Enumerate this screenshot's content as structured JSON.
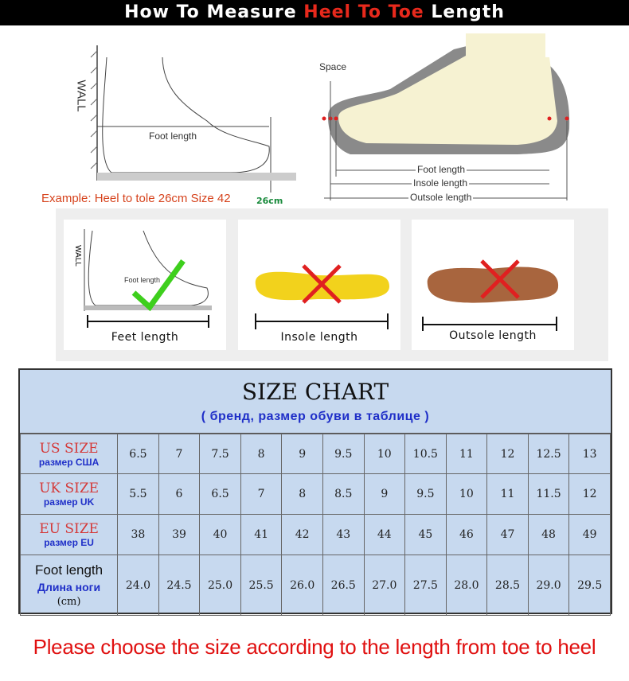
{
  "banner": {
    "pre": "How To Measure ",
    "highlight": "Heel To Toe",
    "post": " Length"
  },
  "diagram_left": {
    "wall": "WALL",
    "foot_length": "Foot length",
    "example": "Example: Heel to tole 26cm Size 42",
    "ruler_mark": "26cm"
  },
  "diagram_right": {
    "space": "Space",
    "foot_length": "Foot length",
    "insole_length": "Insole length",
    "outsole_length": "Outsole length"
  },
  "cards": [
    {
      "label": "Feet length",
      "wall": "WALL",
      "inner": "Foot length",
      "mark": "check-icon",
      "mark_color": "#3ecf1d"
    },
    {
      "label": "Insole length",
      "mark": "cross-icon",
      "mark_color": "#e02020"
    },
    {
      "label": "Outsole length",
      "mark": "cross-icon",
      "mark_color": "#e02020"
    }
  ],
  "size_chart": {
    "title": "SIZE CHART",
    "subtitle": "( бренд,  размер обуви в таблице )",
    "rows": [
      {
        "label": "US SIZE",
        "sublabel": "размер  США",
        "values": [
          "6.5",
          "7",
          "7.5",
          "8",
          "9",
          "9.5",
          "10",
          "10.5",
          "11",
          "12",
          "12.5",
          "13"
        ]
      },
      {
        "label": "UK SIZE",
        "sublabel": "размер  UK",
        "values": [
          "5.5",
          "6",
          "6.5",
          "7",
          "8",
          "8.5",
          "9",
          "9.5",
          "10",
          "11",
          "11.5",
          "12"
        ]
      },
      {
        "label": "EU SIZE",
        "sublabel": "размер  EU",
        "values": [
          "38",
          "39",
          "40",
          "41",
          "42",
          "43",
          "44",
          "45",
          "46",
          "47",
          "48",
          "49"
        ]
      },
      {
        "label": "Foot length",
        "sublabel": "Длина ноги",
        "unit": "(cm)",
        "values": [
          "24.0",
          "24.5",
          "25.0",
          "25.5",
          "26.0",
          "26.5",
          "27.0",
          "27.5",
          "28.0",
          "28.5",
          "29.0",
          "29.5"
        ]
      }
    ]
  },
  "footer": "Please choose the size according to the length from toe to heel",
  "colors": {
    "accent_red": "#e8291c",
    "chart_bg": "#c7d9ef",
    "sub_blue": "#1f2fc8"
  }
}
